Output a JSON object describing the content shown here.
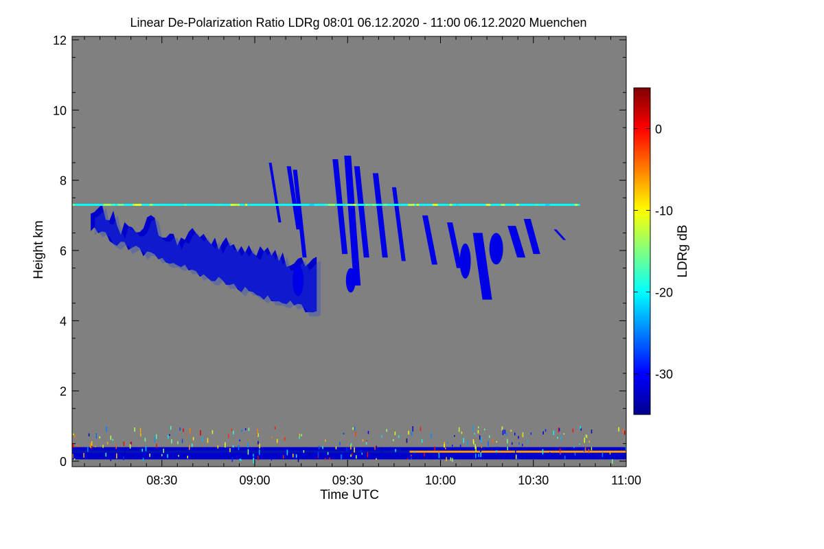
{
  "chart_data": {
    "type": "heatmap",
    "title": "Linear De-Polarization Ratio LDRg   08:01 06.12.2020 - 11:00 06.12.2020 Muenchen",
    "xlabel": "Time UTC",
    "ylabel": "Height km",
    "xlim": [
      "08:01",
      "11:00"
    ],
    "ylim": [
      0,
      12
    ],
    "x_ticks": [
      "08:30",
      "09:00",
      "09:30",
      "10:00",
      "10:30",
      "11:00"
    ],
    "y_ticks": [
      "0",
      "2",
      "4",
      "6",
      "8",
      "10",
      "12"
    ],
    "colorbar": {
      "label": "LDRg dB",
      "range": [
        -35,
        5
      ],
      "ticks": [
        "0",
        "-10",
        "-20",
        "-30"
      ],
      "colormap": "jet"
    },
    "background_color": "#808080",
    "features": [
      {
        "kind": "cirrus-main",
        "t_start": "08:07",
        "t_end": "09:20",
        "top_km": [
          7.0,
          5.6
        ],
        "bottom_km": [
          6.6,
          4.2
        ],
        "ldr_db": -32
      },
      {
        "kind": "fall-streaks",
        "t_start": "09:05",
        "t_end": "10:48",
        "top_km": 8.6,
        "bottom_km": 4.6,
        "ldr_db": -31
      },
      {
        "kind": "horizontal-line",
        "t_start": "08:01",
        "t_end": "10:45",
        "height_km": 7.3,
        "ldr_db": -20
      },
      {
        "kind": "boundary-layer",
        "t_start": "08:01",
        "t_end": "11:00",
        "height_km": [
          0.05,
          0.4
        ],
        "ldr_db": -32
      },
      {
        "kind": "surface-line-high-ldr",
        "t_start": "09:50",
        "t_end": "11:00",
        "height_km": 0.27,
        "ldr_db": -6
      }
    ]
  }
}
